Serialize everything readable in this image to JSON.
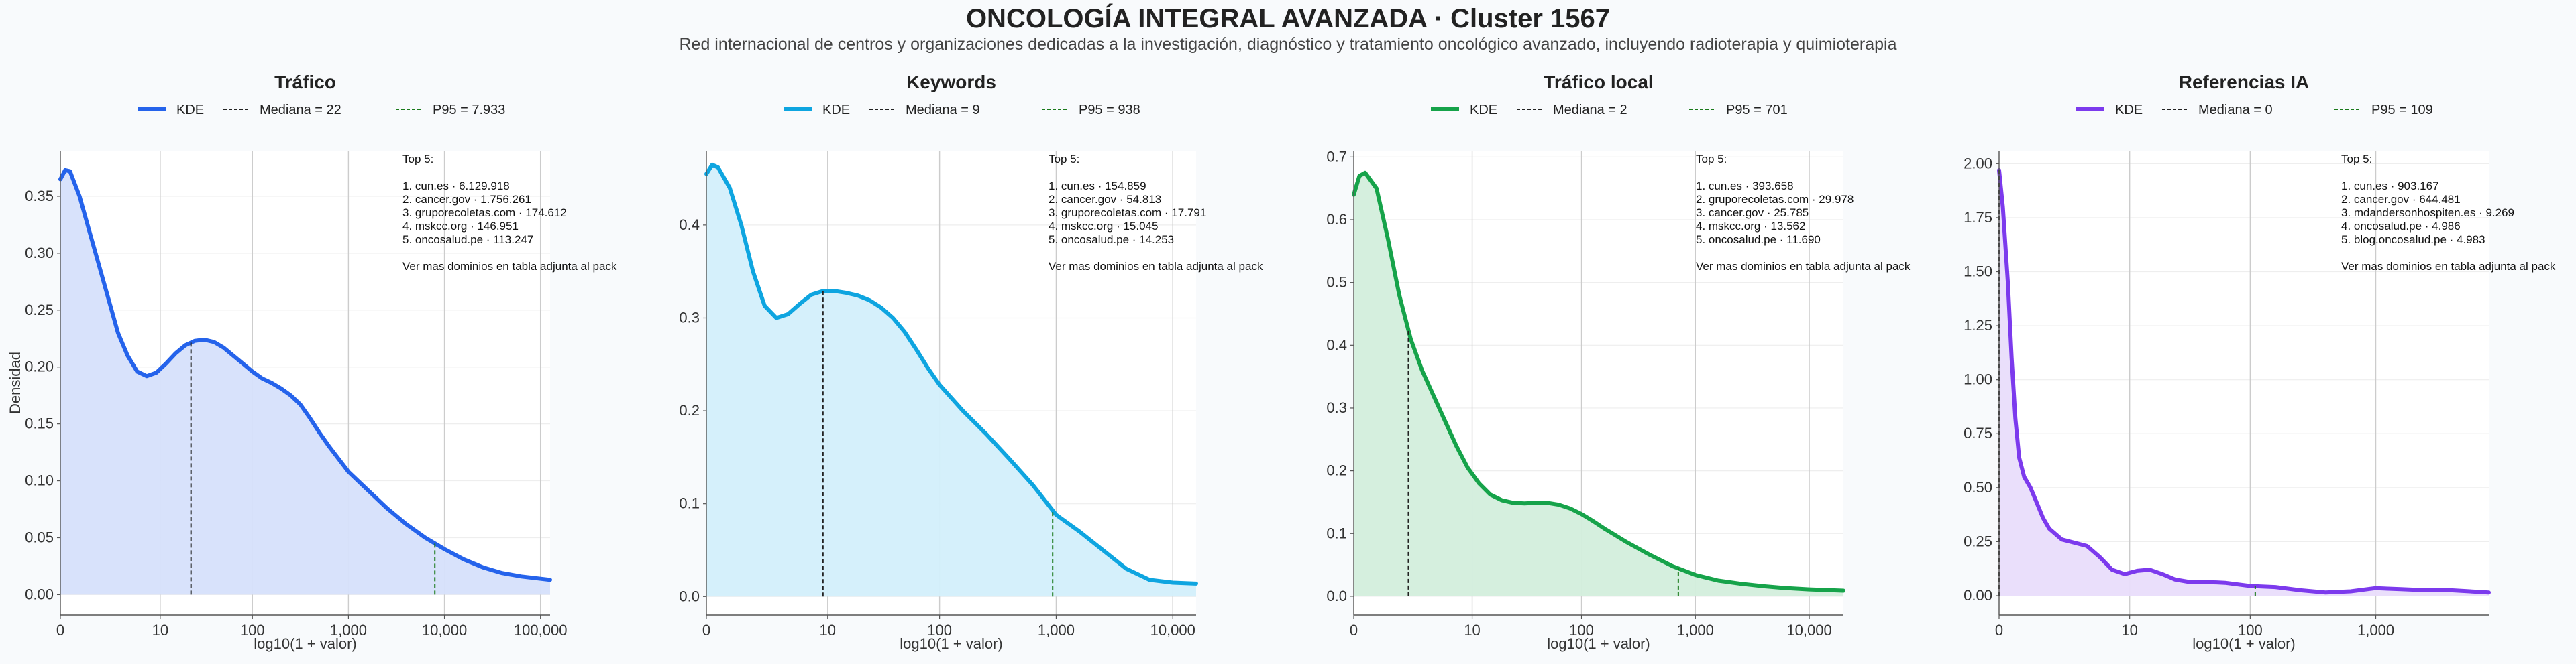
{
  "title": "ONCOLOGÍA INTEGRAL AVANZADA · Cluster 1567",
  "subtitle": "Red internacional de centros y organizaciones dedicadas a la investigación, diagnóstico y tratamiento oncológico avanzado, incluyendo radioterapia y quimioterapia",
  "chart_data": [
    {
      "type": "area",
      "title": "Tráfico",
      "xlabel": "log10(1 + valor)",
      "ylabel": "Densidad",
      "color": "#2563eb",
      "fill": "#d6e0fb",
      "legend": [
        "KDE",
        "Mediana = 22",
        "P95 = 7.933"
      ],
      "x_ticks": [
        "0",
        "10",
        "100",
        "1,000",
        "10,000",
        "100,000"
      ],
      "x_tick_values": [
        0,
        1.04,
        2,
        3,
        4,
        5
      ],
      "xlim": [
        0,
        5.1
      ],
      "y_ticks": [
        "0.00",
        "0.05",
        "0.10",
        "0.15",
        "0.20",
        "0.25",
        "0.30",
        "0.35"
      ],
      "ylim": [
        -0.018,
        0.39
      ],
      "median": 1.36,
      "p95": 3.9,
      "x": [
        0,
        0.05,
        0.1,
        0.2,
        0.3,
        0.4,
        0.5,
        0.6,
        0.7,
        0.8,
        0.9,
        1.0,
        1.1,
        1.2,
        1.3,
        1.4,
        1.5,
        1.6,
        1.7,
        1.8,
        1.9,
        2.0,
        2.1,
        2.2,
        2.3,
        2.4,
        2.5,
        2.6,
        2.7,
        2.8,
        2.9,
        3.0,
        3.2,
        3.4,
        3.6,
        3.8,
        4.0,
        4.2,
        4.4,
        4.6,
        4.8,
        5.1
      ],
      "y": [
        0.365,
        0.373,
        0.372,
        0.35,
        0.32,
        0.29,
        0.26,
        0.23,
        0.21,
        0.196,
        0.192,
        0.195,
        0.203,
        0.212,
        0.219,
        0.223,
        0.224,
        0.222,
        0.217,
        0.21,
        0.203,
        0.196,
        0.19,
        0.186,
        0.181,
        0.175,
        0.167,
        0.155,
        0.142,
        0.13,
        0.119,
        0.108,
        0.092,
        0.076,
        0.062,
        0.05,
        0.04,
        0.031,
        0.024,
        0.019,
        0.016,
        0.013
      ],
      "annotation": [
        "Top 5:",
        "",
        "1. cun.es · 6.129.918",
        "2. cancer.gov · 1.756.261",
        "3. gruporecoletas.com · 174.612",
        "4. mskcc.org · 146.951",
        "5. oncosalud.pe · 113.247",
        "",
        "Ver mas dominios en tabla adjunta al pack"
      ]
    },
    {
      "type": "area",
      "title": "Keywords",
      "xlabel": "log10(1 + valor)",
      "ylabel": "",
      "color": "#0ea5e0",
      "fill": "#d3effb",
      "legend": [
        "KDE",
        "Mediana = 9",
        "P95 = 938"
      ],
      "x_ticks": [
        "0",
        "10",
        "100",
        "1,000",
        "10,000"
      ],
      "x_tick_values": [
        0,
        1.04,
        2,
        3,
        4
      ],
      "xlim": [
        0,
        4.2
      ],
      "y_ticks": [
        "0.0",
        "0.1",
        "0.2",
        "0.3",
        "0.4"
      ],
      "ylim": [
        -0.02,
        0.48
      ],
      "median": 1.0,
      "p95": 2.97,
      "x": [
        0,
        0.05,
        0.1,
        0.2,
        0.3,
        0.4,
        0.5,
        0.6,
        0.7,
        0.8,
        0.9,
        1.0,
        1.1,
        1.2,
        1.3,
        1.4,
        1.5,
        1.6,
        1.7,
        1.8,
        1.9,
        2.0,
        2.2,
        2.4,
        2.6,
        2.8,
        3.0,
        3.2,
        3.4,
        3.6,
        3.8,
        4.0,
        4.2
      ],
      "y": [
        0.455,
        0.465,
        0.462,
        0.44,
        0.4,
        0.35,
        0.313,
        0.3,
        0.304,
        0.315,
        0.325,
        0.329,
        0.329,
        0.327,
        0.324,
        0.319,
        0.311,
        0.3,
        0.285,
        0.266,
        0.246,
        0.228,
        0.2,
        0.175,
        0.148,
        0.12,
        0.088,
        0.07,
        0.05,
        0.03,
        0.018,
        0.015,
        0.014
      ],
      "annotation": [
        "Top 5:",
        "",
        "1. cun.es · 154.859",
        "2. cancer.gov · 54.813",
        "3. gruporecoletas.com · 17.791",
        "4. mskcc.org · 15.045",
        "5. oncosalud.pe · 14.253",
        "",
        "Ver mas dominios en tabla adjunta al pack"
      ]
    },
    {
      "type": "area",
      "title": "Tráfico local",
      "xlabel": "log10(1 + valor)",
      "ylabel": "",
      "color": "#16a34a",
      "fill": "#d3eedc",
      "legend": [
        "KDE",
        "Mediana = 2",
        "P95 = 701"
      ],
      "x_ticks": [
        "0",
        "10",
        "100",
        "1,000",
        "10,000"
      ],
      "x_tick_values": [
        0,
        1.04,
        2,
        3,
        4
      ],
      "xlim": [
        0,
        4.3
      ],
      "y_ticks": [
        "0.0",
        "0.1",
        "0.2",
        "0.3",
        "0.4",
        "0.5",
        "0.6",
        "0.7"
      ],
      "ylim": [
        -0.03,
        0.71
      ],
      "median": 0.48,
      "p95": 2.85,
      "x": [
        0,
        0.05,
        0.1,
        0.2,
        0.3,
        0.4,
        0.5,
        0.6,
        0.7,
        0.8,
        0.9,
        1.0,
        1.1,
        1.2,
        1.3,
        1.4,
        1.5,
        1.6,
        1.7,
        1.8,
        1.9,
        2.0,
        2.1,
        2.2,
        2.3,
        2.4,
        2.6,
        2.8,
        3.0,
        3.2,
        3.4,
        3.6,
        3.8,
        4.0,
        4.3
      ],
      "y": [
        0.64,
        0.67,
        0.675,
        0.65,
        0.57,
        0.48,
        0.41,
        0.36,
        0.32,
        0.28,
        0.24,
        0.205,
        0.18,
        0.162,
        0.153,
        0.149,
        0.148,
        0.149,
        0.149,
        0.146,
        0.14,
        0.131,
        0.12,
        0.108,
        0.097,
        0.086,
        0.066,
        0.048,
        0.034,
        0.025,
        0.02,
        0.016,
        0.013,
        0.011,
        0.009
      ],
      "annotation": [
        "Top 5:",
        "",
        "1. cun.es · 393.658",
        "2. gruporecoletas.com · 29.978",
        "3. cancer.gov · 25.785",
        "4. mskcc.org · 13.562",
        "5. oncosalud.pe · 11.690",
        "",
        "Ver mas dominios en tabla adjunta al pack"
      ]
    },
    {
      "type": "area",
      "title": "Referencias IA",
      "xlabel": "log10(1 + valor)",
      "ylabel": "",
      "color": "#7c3aed",
      "fill": "#e9ddfb",
      "legend": [
        "KDE",
        "Mediana = 0",
        "P95 = 109"
      ],
      "x_ticks": [
        "0",
        "10",
        "100",
        "1,000"
      ],
      "x_tick_values": [
        0,
        1.04,
        2,
        3
      ],
      "xlim": [
        0,
        3.9
      ],
      "y_ticks": [
        "0.00",
        "0.25",
        "0.50",
        "0.75",
        "1.00",
        "1.25",
        "1.50",
        "1.75",
        "2.00"
      ],
      "ylim": [
        -0.09,
        2.06
      ],
      "median": 0.0,
      "p95": 2.04,
      "x": [
        0,
        0.03,
        0.07,
        0.1,
        0.13,
        0.16,
        0.2,
        0.25,
        0.3,
        0.35,
        0.4,
        0.5,
        0.6,
        0.7,
        0.8,
        0.9,
        1.0,
        1.1,
        1.2,
        1.3,
        1.4,
        1.5,
        1.6,
        1.8,
        2.0,
        2.2,
        2.4,
        2.6,
        2.8,
        3.0,
        3.2,
        3.4,
        3.6,
        3.9
      ],
      "y": [
        1.97,
        1.8,
        1.45,
        1.1,
        0.82,
        0.64,
        0.55,
        0.5,
        0.43,
        0.36,
        0.31,
        0.26,
        0.245,
        0.23,
        0.18,
        0.12,
        0.1,
        0.115,
        0.12,
        0.1,
        0.075,
        0.065,
        0.065,
        0.06,
        0.045,
        0.04,
        0.025,
        0.015,
        0.02,
        0.035,
        0.03,
        0.025,
        0.025,
        0.015
      ],
      "annotation": [
        "Top 5:",
        "",
        "1. cun.es · 903.167",
        "2. cancer.gov · 644.481",
        "3. mdandersonhospiten.es · 9.269",
        "4. oncosalud.pe · 4.986",
        "5. blog.oncosalud.pe · 4.983",
        "",
        "Ver mas dominios en tabla adjunta al pack"
      ]
    }
  ]
}
